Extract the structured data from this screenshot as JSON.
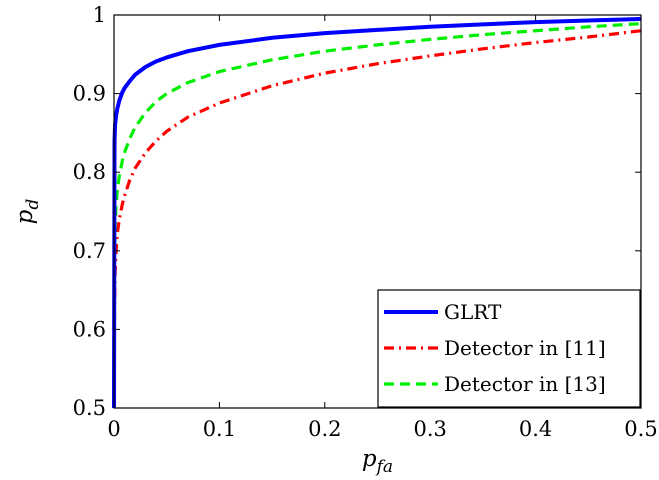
{
  "chart_data": {
    "type": "line",
    "title": "",
    "xlabel": "p_fa",
    "ylabel": "p_d",
    "xlim": [
      0,
      0.5
    ],
    "ylim": [
      0.5,
      1
    ],
    "xticks": [
      "0",
      "0.1",
      "0.2",
      "0.3",
      "0.4",
      "0.5"
    ],
    "yticks": [
      "0.5",
      "0.6",
      "0.7",
      "0.8",
      "0.9",
      "1"
    ],
    "grid": false,
    "legend_position": "bottom-right",
    "series": [
      {
        "name": "GLRT",
        "color": "#0000ff",
        "style": "solid",
        "x": [
          0,
          0.0005,
          0.001,
          0.002,
          0.003,
          0.005,
          0.008,
          0.01,
          0.015,
          0.02,
          0.03,
          0.04,
          0.05,
          0.07,
          0.1,
          0.15,
          0.2,
          0.25,
          0.3,
          0.35,
          0.4,
          0.45,
          0.5
        ],
        "y": [
          0.5,
          0.84,
          0.86,
          0.872,
          0.88,
          0.891,
          0.902,
          0.907,
          0.916,
          0.924,
          0.934,
          0.941,
          0.946,
          0.954,
          0.962,
          0.971,
          0.977,
          0.981,
          0.985,
          0.988,
          0.991,
          0.993,
          0.995
        ]
      },
      {
        "name": "Detector in [11]",
        "color": "#ff0000",
        "style": "dash-dot",
        "x": [
          0,
          0.0005,
          0.001,
          0.002,
          0.003,
          0.005,
          0.008,
          0.01,
          0.015,
          0.02,
          0.03,
          0.04,
          0.05,
          0.07,
          0.1,
          0.15,
          0.2,
          0.25,
          0.3,
          0.35,
          0.4,
          0.45,
          0.5
        ],
        "y": [
          0.5,
          0.63,
          0.67,
          0.7,
          0.72,
          0.74,
          0.76,
          0.77,
          0.79,
          0.805,
          0.825,
          0.84,
          0.852,
          0.87,
          0.888,
          0.91,
          0.926,
          0.938,
          0.948,
          0.957,
          0.965,
          0.972,
          0.98
        ]
      },
      {
        "name": "Detector in [13]",
        "color": "#00ee00",
        "style": "dashed",
        "x": [
          0,
          0.0005,
          0.001,
          0.002,
          0.003,
          0.005,
          0.008,
          0.01,
          0.015,
          0.02,
          0.03,
          0.04,
          0.05,
          0.07,
          0.1,
          0.15,
          0.2,
          0.25,
          0.3,
          0.35,
          0.4,
          0.45,
          0.5
        ],
        "y": [
          0.5,
          0.7,
          0.73,
          0.76,
          0.775,
          0.795,
          0.815,
          0.825,
          0.843,
          0.857,
          0.876,
          0.89,
          0.9,
          0.914,
          0.928,
          0.943,
          0.954,
          0.962,
          0.969,
          0.975,
          0.98,
          0.985,
          0.989
        ]
      }
    ]
  }
}
